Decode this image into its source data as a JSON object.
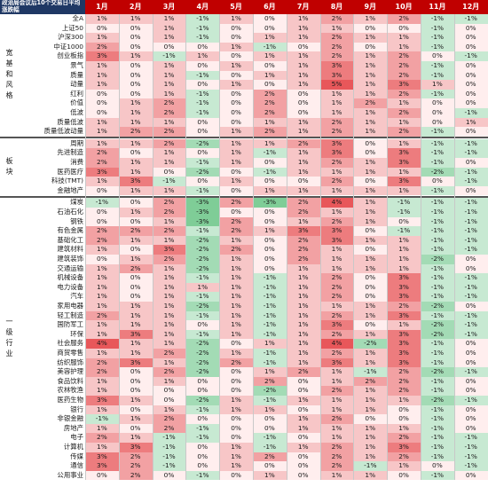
{
  "title": "政治局会议后10个交易日平均涨跌幅",
  "chart_data": {
    "type": "heatmap",
    "title": "政治局会议后10个交易日平均涨跌幅",
    "columns": [
      "1月",
      "2月",
      "3月",
      "4月",
      "5月",
      "6月",
      "7月",
      "8月",
      "9月",
      "10月",
      "11月",
      "12月"
    ],
    "groups": [
      {
        "name": "宽基和风格",
        "rows": [
          {
            "label": "全A",
            "values": [
              "1%",
              "1%",
              "1%",
              "-1%",
              "1%",
              "0%",
              "1%",
              "2%",
              "1%",
              "2%",
              "-1%",
              "-1%"
            ]
          },
          {
            "label": "上证50",
            "values": [
              "0%",
              "0%",
              "1%",
              "-1%",
              "0%",
              "0%",
              "1%",
              "1%",
              "0%",
              "0%",
              "-1%",
              "0%"
            ]
          },
          {
            "label": "沪深300",
            "values": [
              "1%",
              "0%",
              "1%",
              "-1%",
              "0%",
              "1%",
              "1%",
              "2%",
              "1%",
              "1%",
              "-1%",
              "0%"
            ]
          },
          {
            "label": "中证1000",
            "values": [
              "2%",
              "0%",
              "0%",
              "0%",
              "1%",
              "-1%",
              "0%",
              "2%",
              "0%",
              "1%",
              "-1%",
              "0%"
            ]
          },
          {
            "label": "创业板指",
            "values": [
              "3%",
              "1%",
              "-1%",
              "1%",
              "0%",
              "1%",
              "1%",
              "2%",
              "1%",
              "2%",
              "0%",
              "-1%"
            ]
          },
          {
            "label": "景气",
            "values": [
              "1%",
              "0%",
              "1%",
              "0%",
              "1%",
              "0%",
              "1%",
              "3%",
              "1%",
              "2%",
              "-1%",
              "0%"
            ]
          },
          {
            "label": "质量",
            "values": [
              "1%",
              "0%",
              "1%",
              "-1%",
              "0%",
              "1%",
              "1%",
              "3%",
              "1%",
              "2%",
              "-1%",
              "0%"
            ]
          },
          {
            "label": "动量",
            "values": [
              "1%",
              "0%",
              "1%",
              "0%",
              "1%",
              "0%",
              "1%",
              "5%",
              "1%",
              "3%",
              "1%",
              "0%"
            ]
          },
          {
            "label": "红利",
            "values": [
              "0%",
              "0%",
              "1%",
              "-1%",
              "0%",
              "2%",
              "0%",
              "1%",
              "1%",
              "2%",
              "-1%",
              "0%"
            ]
          },
          {
            "label": "价值",
            "values": [
              "0%",
              "1%",
              "2%",
              "-1%",
              "0%",
              "2%",
              "0%",
              "1%",
              "2%",
              "1%",
              "0%",
              "0%"
            ]
          },
          {
            "label": "低波",
            "values": [
              "0%",
              "1%",
              "2%",
              "-1%",
              "0%",
              "2%",
              "0%",
              "1%",
              "1%",
              "2%",
              "0%",
              "-1%"
            ]
          },
          {
            "label": "质量低波",
            "values": [
              "1%",
              "1%",
              "1%",
              "0%",
              "0%",
              "1%",
              "1%",
              "2%",
              "1%",
              "1%",
              "0%",
              "1%"
            ]
          },
          {
            "label": "质量低波动量",
            "values": [
              "1%",
              "2%",
              "2%",
              "0%",
              "1%",
              "2%",
              "1%",
              "2%",
              "1%",
              "2%",
              "-1%",
              "0%"
            ]
          }
        ]
      },
      {
        "name": "板块",
        "rows": [
          {
            "label": "周期",
            "values": [
              "1%",
              "1%",
              "2%",
              "-2%",
              "1%",
              "1%",
              "2%",
              "3%",
              "0%",
              "1%",
              "-1%",
              "-1%"
            ]
          },
          {
            "label": "先进制造",
            "values": [
              "2%",
              "0%",
              "1%",
              "0%",
              "1%",
              "-1%",
              "1%",
              "3%",
              "0%",
              "3%",
              "-1%",
              "-1%"
            ]
          },
          {
            "label": "消费",
            "values": [
              "2%",
              "1%",
              "1%",
              "-1%",
              "1%",
              "0%",
              "1%",
              "2%",
              "1%",
              "3%",
              "-1%",
              "0%"
            ]
          },
          {
            "label": "医药医疗",
            "values": [
              "3%",
              "1%",
              "0%",
              "-2%",
              "0%",
              "-1%",
              "1%",
              "1%",
              "1%",
              "1%",
              "-2%",
              "-1%"
            ]
          },
          {
            "label": "科技(TMT)",
            "values": [
              "1%",
              "3%",
              "-1%",
              "0%",
              "1%",
              "0%",
              "0%",
              "2%",
              "0%",
              "3%",
              "0%",
              "-1%"
            ]
          },
          {
            "label": "金融地产",
            "values": [
              "0%",
              "1%",
              "1%",
              "-1%",
              "0%",
              "1%",
              "1%",
              "1%",
              "1%",
              "1%",
              "-1%",
              "0%"
            ]
          }
        ]
      },
      {
        "name": "一级行业",
        "rows": [
          {
            "label": "煤炭",
            "values": [
              "-1%",
              "0%",
              "2%",
              "-3%",
              "2%",
              "-3%",
              "2%",
              "4%",
              "1%",
              "-1%",
              "-1%",
              "-1%"
            ]
          },
          {
            "label": "石油石化",
            "values": [
              "0%",
              "1%",
              "2%",
              "-3%",
              "0%",
              "0%",
              "2%",
              "1%",
              "1%",
              "-1%",
              "-1%",
              "-1%"
            ]
          },
          {
            "label": "钢铁",
            "values": [
              "0%",
              "0%",
              "1%",
              "-3%",
              "2%",
              "0%",
              "1%",
              "2%",
              "1%",
              "0%",
              "-1%",
              "-1%"
            ]
          },
          {
            "label": "有色金属",
            "values": [
              "2%",
              "2%",
              "2%",
              "-1%",
              "2%",
              "1%",
              "3%",
              "3%",
              "0%",
              "-1%",
              "-1%",
              "-1%"
            ]
          },
          {
            "label": "基础化工",
            "values": [
              "2%",
              "1%",
              "1%",
              "-2%",
              "1%",
              "0%",
              "2%",
              "3%",
              "1%",
              "1%",
              "-1%",
              "-1%"
            ]
          },
          {
            "label": "建筑材料",
            "values": [
              "1%",
              "0%",
              "3%",
              "-2%",
              "2%",
              "0%",
              "2%",
              "1%",
              "0%",
              "1%",
              "-1%",
              "-1%"
            ]
          },
          {
            "label": "建筑装饰",
            "values": [
              "0%",
              "1%",
              "2%",
              "-2%",
              "1%",
              "0%",
              "2%",
              "1%",
              "1%",
              "1%",
              "-2%",
              "0%"
            ]
          },
          {
            "label": "交通运输",
            "values": [
              "1%",
              "2%",
              "1%",
              "-2%",
              "1%",
              "0%",
              "1%",
              "1%",
              "1%",
              "1%",
              "-1%",
              "0%"
            ]
          },
          {
            "label": "机械设备",
            "values": [
              "1%",
              "0%",
              "1%",
              "-1%",
              "1%",
              "-1%",
              "1%",
              "2%",
              "0%",
              "3%",
              "-1%",
              "-1%"
            ]
          },
          {
            "label": "电力设备",
            "values": [
              "1%",
              "0%",
              "1%",
              "1%",
              "1%",
              "-1%",
              "1%",
              "2%",
              "0%",
              "3%",
              "-1%",
              "-1%"
            ]
          },
          {
            "label": "汽车",
            "values": [
              "1%",
              "0%",
              "1%",
              "-1%",
              "1%",
              "-1%",
              "1%",
              "2%",
              "0%",
              "3%",
              "-1%",
              "-1%"
            ]
          },
          {
            "label": "家用电器",
            "values": [
              "1%",
              "1%",
              "1%",
              "-2%",
              "1%",
              "-1%",
              "1%",
              "1%",
              "1%",
              "2%",
              "-2%",
              "0%"
            ]
          },
          {
            "label": "轻工制造",
            "values": [
              "2%",
              "1%",
              "1%",
              "-1%",
              "1%",
              "-1%",
              "1%",
              "2%",
              "1%",
              "3%",
              "-1%",
              "-1%"
            ]
          },
          {
            "label": "国防军工",
            "values": [
              "1%",
              "1%",
              "1%",
              "0%",
              "1%",
              "-1%",
              "1%",
              "3%",
              "0%",
              "1%",
              "-2%",
              "-1%"
            ]
          },
          {
            "label": "环保",
            "values": [
              "1%",
              "3%",
              "1%",
              "-1%",
              "1%",
              "-1%",
              "1%",
              "2%",
              "1%",
              "3%",
              "-2%",
              "-1%"
            ]
          },
          {
            "label": "社会服务",
            "values": [
              "4%",
              "1%",
              "1%",
              "-2%",
              "0%",
              "1%",
              "1%",
              "4%",
              "-2%",
              "3%",
              "-1%",
              "0%"
            ]
          },
          {
            "label": "商贸零售",
            "values": [
              "1%",
              "1%",
              "2%",
              "-2%",
              "1%",
              "-1%",
              "1%",
              "2%",
              "1%",
              "3%",
              "-1%",
              "0%"
            ]
          },
          {
            "label": "纺织服饰",
            "values": [
              "2%",
              "3%",
              "1%",
              "-2%",
              "2%",
              "-1%",
              "1%",
              "3%",
              "1%",
              "3%",
              "-1%",
              "0%"
            ]
          },
          {
            "label": "美容护理",
            "values": [
              "2%",
              "0%",
              "2%",
              "-2%",
              "0%",
              "1%",
              "2%",
              "1%",
              "-1%",
              "2%",
              "-2%",
              "-1%"
            ]
          },
          {
            "label": "食品饮料",
            "values": [
              "1%",
              "0%",
              "1%",
              "0%",
              "0%",
              "2%",
              "0%",
              "1%",
              "2%",
              "2%",
              "-1%",
              "0%"
            ]
          },
          {
            "label": "农林牧渔",
            "values": [
              "1%",
              "0%",
              "0%",
              "0%",
              "0%",
              "-2%",
              "0%",
              "2%",
              "1%",
              "2%",
              "-1%",
              "0%"
            ]
          },
          {
            "label": "医药生物",
            "values": [
              "3%",
              "1%",
              "0%",
              "-2%",
              "1%",
              "-1%",
              "1%",
              "1%",
              "1%",
              "1%",
              "-2%",
              "-1%"
            ]
          },
          {
            "label": "银行",
            "values": [
              "1%",
              "0%",
              "1%",
              "-1%",
              "1%",
              "1%",
              "0%",
              "1%",
              "1%",
              "0%",
              "-1%",
              "0%"
            ]
          },
          {
            "label": "非银金融",
            "values": [
              "-1%",
              "1%",
              "2%",
              "0%",
              "0%",
              "0%",
              "1%",
              "2%",
              "0%",
              "0%",
              "-1%",
              "0%"
            ]
          },
          {
            "label": "房地产",
            "values": [
              "1%",
              "0%",
              "2%",
              "-1%",
              "0%",
              "0%",
              "1%",
              "1%",
              "1%",
              "1%",
              "-1%",
              "0%"
            ]
          },
          {
            "label": "电子",
            "values": [
              "2%",
              "1%",
              "-1%",
              "-1%",
              "0%",
              "-1%",
              "0%",
              "1%",
              "1%",
              "2%",
              "-1%",
              "-1%"
            ]
          },
          {
            "label": "计算机",
            "values": [
              "1%",
              "3%",
              "-1%",
              "0%",
              "1%",
              "-1%",
              "1%",
              "2%",
              "1%",
              "3%",
              "-1%",
              "-1%"
            ]
          },
          {
            "label": "传媒",
            "values": [
              "3%",
              "2%",
              "-1%",
              "0%",
              "1%",
              "2%",
              "0%",
              "2%",
              "1%",
              "2%",
              "-1%",
              "-1%"
            ]
          },
          {
            "label": "通信",
            "values": [
              "3%",
              "2%",
              "-1%",
              "0%",
              "1%",
              "0%",
              "0%",
              "2%",
              "-1%",
              "1%",
              "0%",
              "-1%"
            ]
          },
          {
            "label": "公用事业",
            "values": [
              "0%",
              "2%",
              "0%",
              "-1%",
              "0%",
              "1%",
              "0%",
              "1%",
              "1%",
              "0%",
              "-1%",
              "0%"
            ]
          }
        ]
      }
    ]
  },
  "colors": {
    "header_bg": "#c00000",
    "title_bg": "#1f3864",
    "positive": "#e8575a",
    "negative": "#5bbf7a"
  }
}
